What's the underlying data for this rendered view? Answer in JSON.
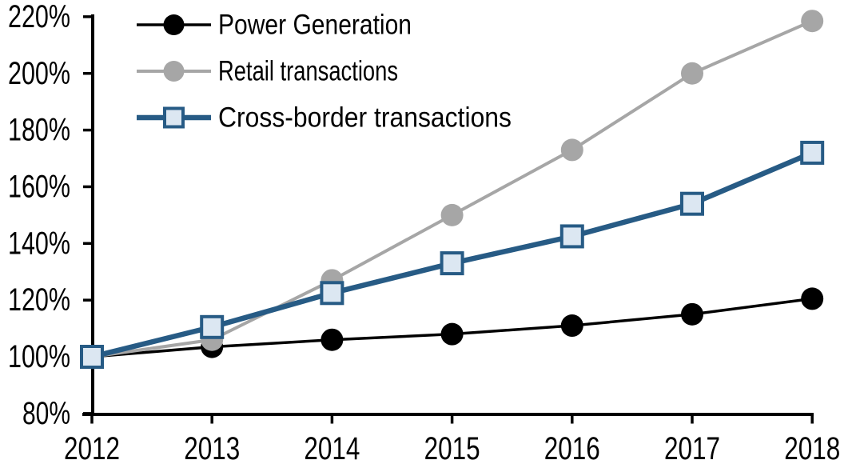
{
  "chart_data": {
    "type": "line",
    "title": "",
    "xlabel": "",
    "ylabel": "",
    "grid": false,
    "legend_position": "top-left-inside",
    "x": [
      2012,
      2013,
      2014,
      2015,
      2016,
      2017,
      2018
    ],
    "x_tick_labels": [
      "2012",
      "2013",
      "2014",
      "2015",
      "2016",
      "2017",
      "2018"
    ],
    "y_axis": {
      "min": 80,
      "max": 220,
      "step": 20,
      "unit": "%",
      "tick_values": [
        220,
        200,
        180,
        160,
        140,
        120,
        100,
        80
      ],
      "tick_labels": [
        "220%",
        "200%",
        "180%",
        "160%",
        "140%",
        "120%",
        "100%",
        "80%"
      ]
    },
    "axis_color": "#000000",
    "series": [
      {
        "name": "Power Generation",
        "color": "#000000",
        "marker": "circle",
        "marker_fill": "#000000",
        "line_width": 3.5,
        "values": [
          100,
          103.5,
          106,
          108,
          111,
          115,
          120.5
        ]
      },
      {
        "name": "Retail transactions",
        "color": "#a6a6a6",
        "marker": "circle",
        "marker_fill": "#a6a6a6",
        "line_width": 4,
        "values": [
          100,
          106,
          127,
          150,
          173,
          200,
          218.5
        ]
      },
      {
        "name": "Cross-border transactions",
        "color": "#275b85",
        "marker": "square",
        "marker_fill": "#dce7f2",
        "line_width": 6.5,
        "values": [
          100,
          110.5,
          122.5,
          133,
          142.5,
          154,
          172
        ]
      }
    ]
  }
}
